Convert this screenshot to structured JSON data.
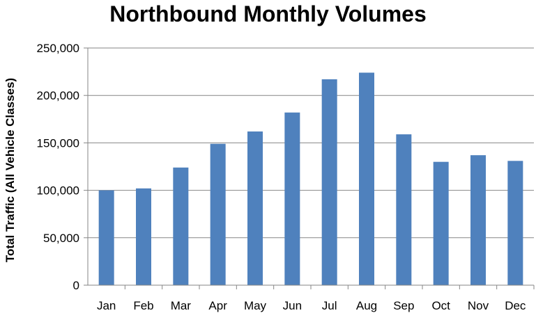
{
  "chart_data": {
    "type": "bar",
    "title": "Northbound Monthly Volumes",
    "xlabel": "",
    "ylabel": "Total Traffic (All Vehicle Classes)",
    "categories": [
      "Jan",
      "Feb",
      "Mar",
      "Apr",
      "May",
      "Jun",
      "Jul",
      "Aug",
      "Sep",
      "Oct",
      "Nov",
      "Dec"
    ],
    "values": [
      100000,
      102000,
      124000,
      149000,
      162000,
      182000,
      217000,
      224000,
      159000,
      130000,
      137000,
      131000
    ],
    "ylim": [
      0,
      250000
    ],
    "yticks": [
      0,
      50000,
      100000,
      150000,
      200000,
      250000
    ],
    "grid": "horizontal",
    "legend": "none",
    "colors": {
      "bar": "#4f81bd",
      "grid": "#868686",
      "axis": "#868686"
    }
  }
}
